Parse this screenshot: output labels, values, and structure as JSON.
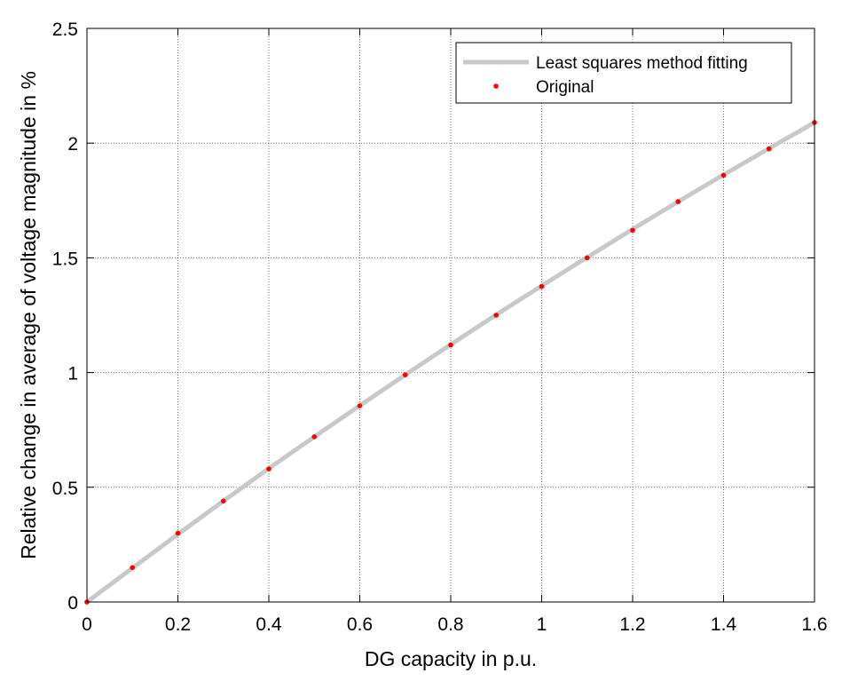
{
  "chart_data": {
    "type": "line",
    "title": "",
    "xlabel": "DG capacity in p.u.",
    "ylabel": "Relative change in average of voltage magnitude in %",
    "xlim": [
      0,
      1.6
    ],
    "ylim": [
      0,
      2.5
    ],
    "xticks": [
      "0",
      "0.2",
      "0.4",
      "0.6",
      "0.8",
      "1",
      "1.2",
      "1.4",
      "1.6"
    ],
    "yticks": [
      "0",
      "0.5",
      "1",
      "1.5",
      "2",
      "2.5"
    ],
    "grid": true,
    "legend_position": "top-right",
    "series": [
      {
        "name": "Least squares method fitting",
        "style": "line",
        "color": "#c8c8c8",
        "x": [
          0,
          0.1,
          0.2,
          0.3,
          0.4,
          0.5,
          0.6,
          0.7,
          0.8,
          0.9,
          1.0,
          1.1,
          1.2,
          1.3,
          1.4,
          1.5,
          1.6
        ],
        "y": [
          0,
          0.148,
          0.295,
          0.44,
          0.582,
          0.72,
          0.856,
          0.99,
          1.122,
          1.252,
          1.378,
          1.502,
          1.625,
          1.745,
          1.862,
          1.977,
          2.09
        ]
      },
      {
        "name": "Original",
        "style": "markers",
        "color": "#ff0000",
        "x": [
          0,
          0.1,
          0.2,
          0.3,
          0.4,
          0.5,
          0.6,
          0.7,
          0.8,
          0.9,
          1.0,
          1.1,
          1.2,
          1.3,
          1.4,
          1.5,
          1.6
        ],
        "y": [
          0,
          0.15,
          0.3,
          0.44,
          0.58,
          0.72,
          0.855,
          0.99,
          1.12,
          1.25,
          1.375,
          1.5,
          1.62,
          1.745,
          1.86,
          1.975,
          2.09
        ]
      }
    ]
  }
}
